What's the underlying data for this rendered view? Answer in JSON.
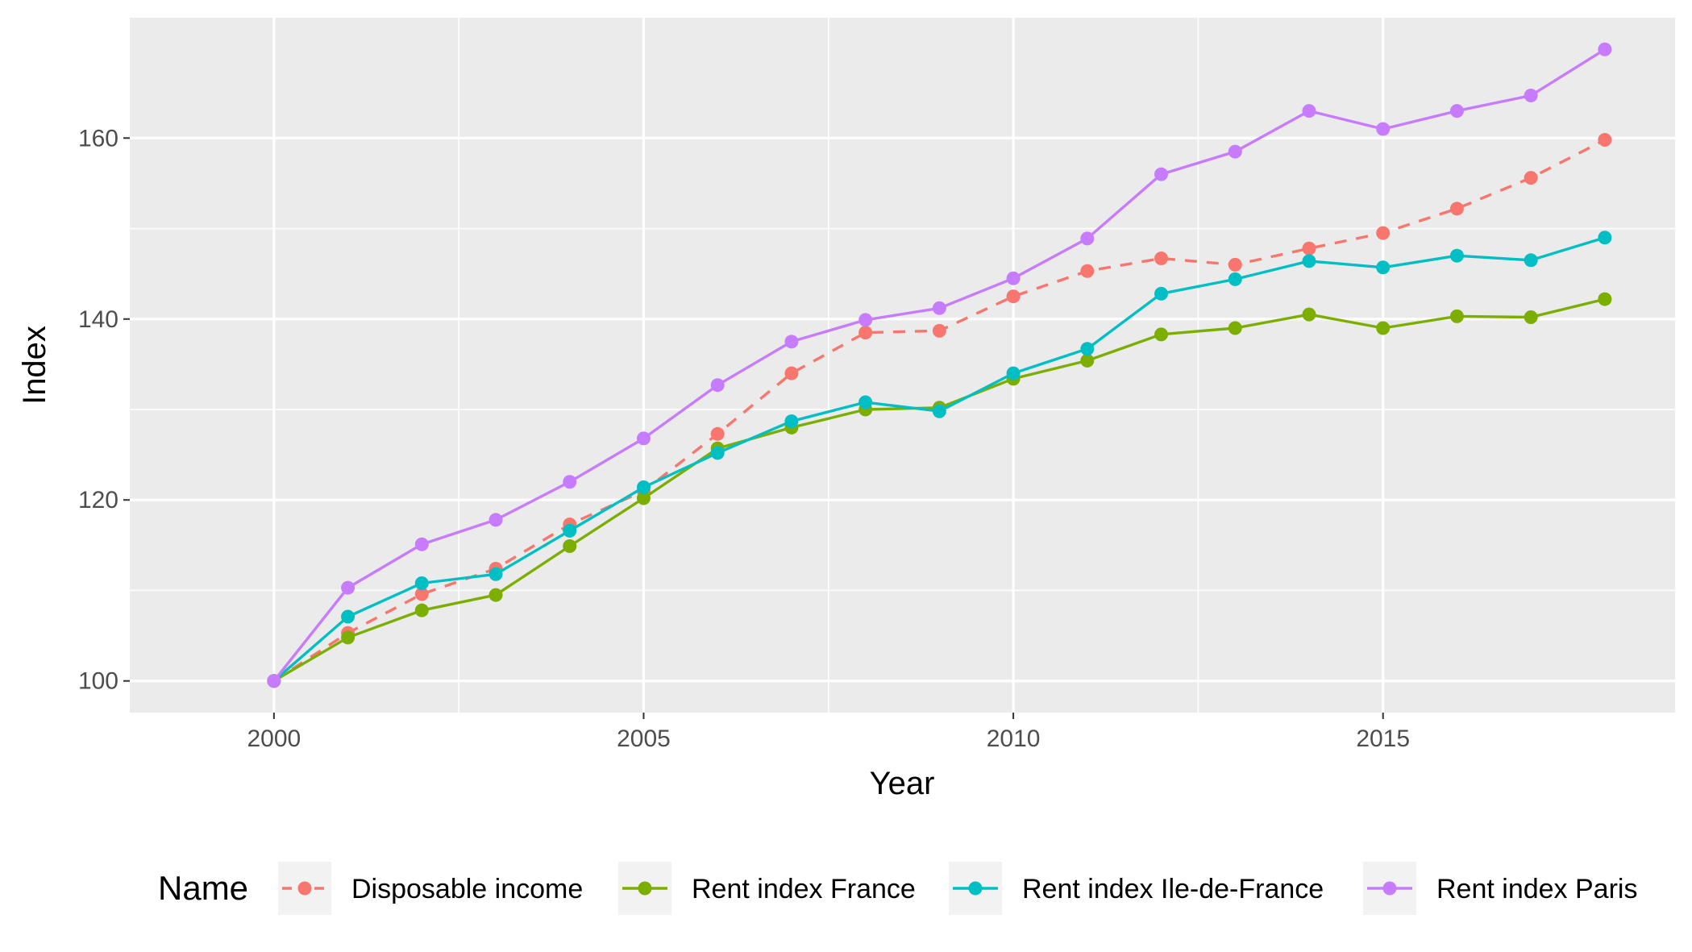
{
  "chart_data": {
    "type": "line",
    "xlabel": "Year",
    "ylabel": "Index",
    "xlim": [
      1998.05,
      2018.95
    ],
    "ylim": [
      96.5,
      173.3
    ],
    "x_ticks": [
      2000,
      2005,
      2010,
      2015
    ],
    "y_ticks": [
      100,
      120,
      140,
      160
    ],
    "grid": true,
    "legend": {
      "title": "Name",
      "position": "bottom"
    },
    "x": [
      2000,
      2001,
      2002,
      2003,
      2004,
      2005,
      2006,
      2007,
      2008,
      2009,
      2010,
      2011,
      2012,
      2013,
      2014,
      2015,
      2016,
      2017,
      2018
    ],
    "series": [
      {
        "name": "Disposable income",
        "color": "#F8766D",
        "dash": "dashed",
        "values": [
          100,
          105.3,
          109.6,
          112.4,
          117.3,
          121.0,
          127.3,
          134.0,
          138.5,
          138.7,
          142.5,
          145.3,
          146.7,
          146.0,
          147.8,
          149.5,
          152.2,
          155.6,
          159.8
        ]
      },
      {
        "name": "Rent index France",
        "color": "#7CAE00",
        "dash": "solid",
        "values": [
          100,
          104.8,
          107.8,
          109.5,
          114.9,
          120.2,
          125.7,
          128.0,
          130.0,
          130.2,
          133.4,
          135.4,
          138.3,
          139.0,
          140.5,
          139.0,
          140.3,
          140.2,
          142.2
        ]
      },
      {
        "name": "Rent index Ile-de-France",
        "color": "#00BFC4",
        "dash": "solid",
        "values": [
          100,
          107.1,
          110.8,
          111.8,
          116.6,
          121.4,
          125.2,
          128.7,
          130.8,
          129.8,
          134.0,
          136.7,
          142.8,
          144.4,
          146.4,
          145.7,
          147.0,
          146.5,
          149.0
        ]
      },
      {
        "name": "Rent index Paris",
        "color": "#C77CFF",
        "dash": "solid",
        "values": [
          100,
          110.3,
          115.1,
          117.8,
          122.0,
          126.8,
          132.7,
          137.5,
          139.9,
          141.2,
          144.5,
          148.9,
          156.0,
          158.5,
          163.0,
          161.0,
          163.0,
          164.7,
          169.8
        ]
      }
    ]
  }
}
